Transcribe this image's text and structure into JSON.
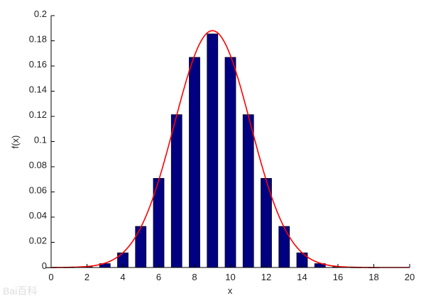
{
  "chart_data": {
    "type": "bar",
    "title": "",
    "xlabel": "x",
    "ylabel": "f(x)",
    "xlim": [
      0,
      20
    ],
    "ylim": [
      0,
      0.2
    ],
    "grid": false,
    "xticks": [
      0,
      2,
      4,
      6,
      8,
      10,
      12,
      14,
      16,
      18,
      20
    ],
    "yticks": [
      0,
      0.02,
      0.04,
      0.06,
      0.08,
      0.1,
      0.12,
      0.14,
      0.16,
      0.18,
      0.2
    ],
    "bars": {
      "color": "#000080",
      "x": [
        0,
        1,
        2,
        3,
        4,
        5,
        6,
        7,
        8,
        9,
        10,
        11,
        12,
        13,
        14,
        15,
        16,
        17,
        18
      ],
      "values": [
        3.8e-06,
        6.87e-05,
        0.000584,
        0.00311,
        0.01167,
        0.03268,
        0.07082,
        0.1214,
        0.1669,
        0.1855,
        0.1669,
        0.1214,
        0.07082,
        0.03268,
        0.01167,
        0.00311,
        0.000584,
        6.87e-05,
        3.8e-06
      ]
    },
    "curve": {
      "type": "line",
      "color": "#ff0000",
      "mean": 9,
      "std": 2.1213
    }
  },
  "watermark": "Bai百科"
}
